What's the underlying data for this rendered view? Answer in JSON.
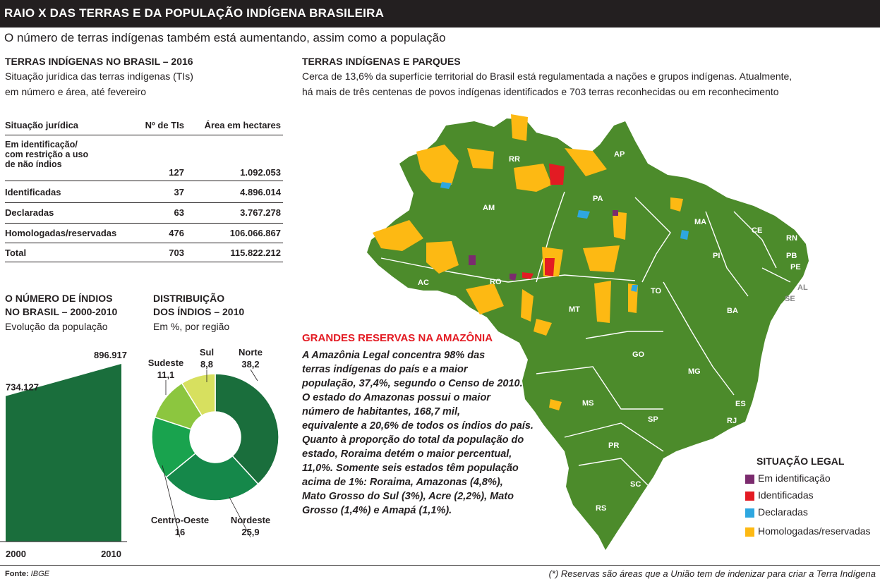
{
  "header": {
    "title": "RAIO X DAS TERRAS E DA POPULAÇÃO INDÍGENA BRASILEIRA",
    "subtitle": "O número de terras indígenas também está aumentando, assim como a população"
  },
  "colors": {
    "dark_green": "#1a6e3c",
    "map_green": "#4c8b2b",
    "em_identificacao": "#7b2b6e",
    "identificadas": "#e31b23",
    "declaradas": "#2ea7e0",
    "homologadas": "#fdb913",
    "red_title": "#e31b23"
  },
  "table_section": {
    "title": "TERRAS INDÍGENAS NO BRASIL – 2016",
    "description_1": "Situação jurídica das terras indígenas (TIs)",
    "description_2": "em número e área, até fevereiro",
    "headers": [
      "Situação jurídica",
      "Nº de TIs",
      "Área em hectares"
    ],
    "rows": [
      {
        "situacao": "Em identificação/\ncom restrição a uso\nde não índios",
        "num": "127",
        "area": "1.092.053"
      },
      {
        "situacao": "Identificadas",
        "num": "37",
        "area": "4.896.014"
      },
      {
        "situacao": "Declaradas",
        "num": "63",
        "area": "3.767.278"
      },
      {
        "situacao": "Homologadas/reservadas",
        "num": "476",
        "area": "106.066.867"
      },
      {
        "situacao": "Total",
        "num": "703",
        "area": "115.822.212"
      }
    ]
  },
  "map_section": {
    "title": "TERRAS INDÍGENAS E PARQUES",
    "description_1": "Cerca de 13,6% da superfície territorial do Brasil está regulamentada a nações e grupos indígenas. Atualmente,",
    "description_2": "há mais de três centenas de povos indígenas identificados e 703 terras reconhecidas ou em reconhecimento",
    "states": [
      "RR",
      "AP",
      "AM",
      "PA",
      "MA",
      "CE",
      "RN",
      "PB",
      "PE",
      "AL",
      "SE",
      "PI",
      "AC",
      "RO",
      "TO",
      "BA",
      "MT",
      "GO",
      "MG",
      "ES",
      "RJ",
      "SP",
      "MS",
      "PR",
      "SC",
      "RS"
    ],
    "legend_title": "SITUAÇÃO LEGAL",
    "legend": [
      "Em identificação",
      "Identificadas",
      "Declaradas",
      "Homologadas/reservadas"
    ]
  },
  "reserves": {
    "title": "GRANDES RESERVAS NA AMAZÔNIA",
    "lines": [
      "A Amazônia Legal concentra 98% das",
      "terras indígenas do país e a maior",
      "população, 37,4%, segundo o Censo de 2010.",
      "O estado do Amazonas possui o maior",
      "número de habitantes, 168,7 mil,",
      "equivalente a 20,6% de todos os índios do país.",
      "Quanto à proporção do total da população do",
      "estado, Roraima detém o maior percentual,",
      "11,0%. Somente seis estados têm população",
      "acima de 1%: Roraima, Amazonas (4,8%),",
      "Mato Grosso do Sul (3%), Acre (2,2%), Mato",
      "Grosso (1,4%) e Amapá (1,1%)."
    ]
  },
  "chart_data": [
    {
      "type": "area",
      "title_1": "O NÚMERO DE ÍNDIOS",
      "title_2": "NO BRASIL – 2000-2010",
      "subtitle": "Evolução  da população",
      "x": [
        "2000",
        "2010"
      ],
      "values": [
        734127,
        896917
      ],
      "value_labels": [
        "734.127",
        "896.917"
      ],
      "ylim": [
        0,
        896917
      ]
    },
    {
      "type": "pie",
      "title_1": "DISTRIBUIÇÃO",
      "title_2": "DOS ÍNDIOS – 2010",
      "subtitle": "Em %, por região",
      "slices": [
        {
          "name": "Norte",
          "value": 38.2,
          "label": "38,2",
          "color": "#1a6e3c"
        },
        {
          "name": "Nordeste",
          "value": 25.9,
          "label": "25,9",
          "color": "#15884a"
        },
        {
          "name": "Centro-Oeste",
          "value": 16,
          "label": "16",
          "color": "#19a34e"
        },
        {
          "name": "Sudeste",
          "value": 11.1,
          "label": "11,1",
          "color": "#8cc63f"
        },
        {
          "name": "Sul",
          "value": 8.8,
          "label": "8,8",
          "color": "#d7e05f"
        }
      ]
    }
  ],
  "footer": {
    "source_label": "Fonte:",
    "source_value": "IBGE",
    "note": "(*) Reservas são áreas que a União tem de indenizar para criar a Terra Indígena"
  }
}
